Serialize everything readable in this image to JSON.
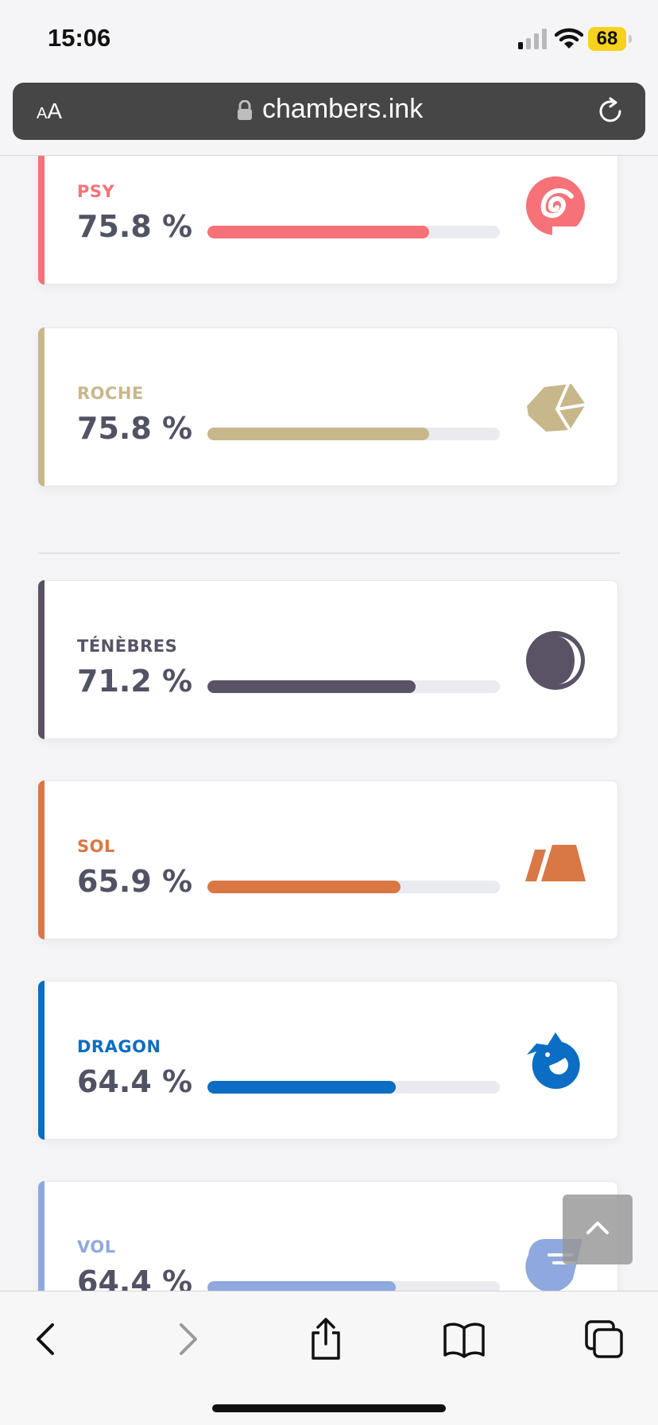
{
  "status_bar": {
    "time": "15:06",
    "battery": "68"
  },
  "browser": {
    "text_size_label_small": "A",
    "text_size_label_large": "A",
    "url": "chambers.ink"
  },
  "types": [
    {
      "label": "PSY",
      "percent": "75.8 %",
      "value": 75.8,
      "color": "#f67278",
      "icon": "psychic-spiral-icon"
    },
    {
      "label": "ROCHE",
      "percent": "75.8 %",
      "value": 75.8,
      "color": "#c7b78b",
      "icon": "rock-icon"
    },
    {
      "label": "TÉNÈBRES",
      "percent": "71.2 %",
      "value": 71.2,
      "color": "#5a5366",
      "icon": "dark-moon-icon"
    },
    {
      "label": "SOL",
      "percent": "65.9 %",
      "value": 65.9,
      "color": "#d97845",
      "icon": "ground-icon"
    },
    {
      "label": "DRAGON",
      "percent": "64.4 %",
      "value": 64.4,
      "color": "#0b6dc3",
      "icon": "dragon-icon"
    },
    {
      "label": "VOL",
      "percent": "64.4 %",
      "value": 64.4,
      "color": "#8fa9de",
      "icon": "flying-wing-icon"
    }
  ],
  "toolbar": {
    "back": "back-icon",
    "forward": "forward-icon",
    "share": "share-icon",
    "bookmarks": "bookmarks-icon",
    "tabs": "tabs-icon"
  }
}
